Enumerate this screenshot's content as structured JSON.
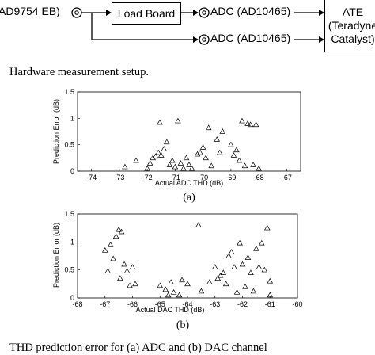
{
  "diagram": {
    "source_label": "AD9754 EB)",
    "load_board": "Load Board",
    "adc_top": "ADC (AD10465)",
    "adc_bottom": "ADC (AD10465)",
    "ate_line1": "ATE",
    "ate_line2": "(Teradyne",
    "ate_line3": "Catalyst)"
  },
  "caption_top": "Hardware measurement setup.",
  "caption_bottom": "THD prediction error for (a) ADC and (b) DAC channel",
  "chart_data": [
    {
      "type": "scatter",
      "marker": "triangle",
      "title": "",
      "subtitle": "(a)",
      "xlabel": "Actual ADC THD (dB)",
      "ylabel": "Prediction Error (dB)",
      "xlim": [
        -74.5,
        -66.5
      ],
      "ylim": [
        0,
        1.5
      ],
      "xticks": [
        "-74",
        "-73",
        "-72",
        "-71",
        "-70",
        "-69",
        "-68",
        "-67"
      ],
      "xtick_values": [
        -74,
        -73,
        -72,
        -71,
        -70,
        -69,
        -68,
        -67
      ],
      "yticks": [
        "0",
        "0.5",
        "1",
        "1.5"
      ],
      "ytick_values": [
        0,
        0.5,
        1,
        1.5
      ],
      "grid": false,
      "points": [
        [
          -72.8,
          0.08
        ],
        [
          -72.4,
          0.2
        ],
        [
          -71.9,
          0.15
        ],
        [
          -71.8,
          0.25
        ],
        [
          -71.7,
          0.28
        ],
        [
          -71.6,
          0.35
        ],
        [
          -71.5,
          0.3
        ],
        [
          -71.55,
          0.92
        ],
        [
          -71.4,
          0.42
        ],
        [
          -71.3,
          0.55
        ],
        [
          -71.2,
          0.12
        ],
        [
          -71.1,
          0.2
        ],
        [
          -71.0,
          0.08
        ],
        [
          -70.9,
          0.95
        ],
        [
          -70.8,
          0.15
        ],
        [
          -70.7,
          0.05
        ],
        [
          -70.6,
          0.25
        ],
        [
          -70.5,
          0.12
        ],
        [
          -70.4,
          0.05
        ],
        [
          -70.2,
          0.32
        ],
        [
          -70.1,
          0.35
        ],
        [
          -70.0,
          0.45
        ],
        [
          -69.9,
          0.25
        ],
        [
          -69.8,
          0.82
        ],
        [
          -69.7,
          0.1
        ],
        [
          -69.5,
          0.6
        ],
        [
          -69.4,
          0.35
        ],
        [
          -69.3,
          0.75
        ],
        [
          -69.0,
          0.5
        ],
        [
          -68.9,
          0.3
        ],
        [
          -68.8,
          0.4
        ],
        [
          -68.7,
          0.2
        ],
        [
          -68.6,
          0.95
        ],
        [
          -68.5,
          0.1
        ],
        [
          -68.4,
          0.9
        ],
        [
          -68.3,
          0.88
        ],
        [
          -68.2,
          0.12
        ],
        [
          -68.1,
          0.88
        ],
        [
          -68.0,
          0.05
        ],
        [
          -72.0,
          0.05
        ]
      ]
    },
    {
      "type": "scatter",
      "marker": "triangle",
      "title": "",
      "subtitle": "(b)",
      "xlabel": "Actual DAC THD (dB)",
      "ylabel": "Prediction Error (dB)",
      "xlim": [
        -68,
        -60
      ],
      "ylim": [
        0,
        1.5
      ],
      "xticks": [
        "-68",
        "-67",
        "-66",
        "-65",
        "-64",
        "-63",
        "-62",
        "-61",
        "-60"
      ],
      "xtick_values": [
        -68,
        -67,
        -66,
        -65,
        -64,
        -63,
        -62,
        -61,
        -60
      ],
      "yticks": [
        "0",
        "0.5",
        "1",
        "1.5"
      ],
      "ytick_values": [
        0,
        0.5,
        1,
        1.5
      ],
      "grid": false,
      "points": [
        [
          -67.0,
          0.85
        ],
        [
          -66.9,
          0.48
        ],
        [
          -66.8,
          0.95
        ],
        [
          -66.7,
          0.7
        ],
        [
          -66.6,
          1.1
        ],
        [
          -66.5,
          1.22
        ],
        [
          -66.45,
          0.35
        ],
        [
          -66.4,
          1.18
        ],
        [
          -66.3,
          0.6
        ],
        [
          -66.2,
          0.48
        ],
        [
          -66.1,
          0.22
        ],
        [
          -66.0,
          0.55
        ],
        [
          -65.9,
          0.25
        ],
        [
          -65.0,
          0.22
        ],
        [
          -64.8,
          0.15
        ],
        [
          -64.6,
          0.28
        ],
        [
          -64.5,
          0.1
        ],
        [
          -64.3,
          0.05
        ],
        [
          -64.2,
          0.32
        ],
        [
          -64.0,
          0.25
        ],
        [
          -63.6,
          1.3
        ],
        [
          -63.5,
          0.12
        ],
        [
          -63.2,
          0.28
        ],
        [
          -63.0,
          0.55
        ],
        [
          -62.9,
          0.35
        ],
        [
          -62.8,
          0.4
        ],
        [
          -62.7,
          0.45
        ],
        [
          -62.6,
          0.25
        ],
        [
          -62.5,
          0.75
        ],
        [
          -62.4,
          0.82
        ],
        [
          -62.3,
          0.55
        ],
        [
          -62.2,
          0.1
        ],
        [
          -62.1,
          0.98
        ],
        [
          -62.0,
          0.6
        ],
        [
          -61.9,
          0.2
        ],
        [
          -61.8,
          0.72
        ],
        [
          -61.7,
          0.45
        ],
        [
          -61.6,
          0.12
        ],
        [
          -61.5,
          0.88
        ],
        [
          -61.4,
          0.55
        ],
        [
          -61.3,
          0.98
        ],
        [
          -61.2,
          0.5
        ],
        [
          -61.1,
          1.25
        ],
        [
          -61.0,
          0.3
        ],
        [
          -61.0,
          0.05
        ],
        [
          -64.7,
          0.05
        ]
      ]
    }
  ]
}
